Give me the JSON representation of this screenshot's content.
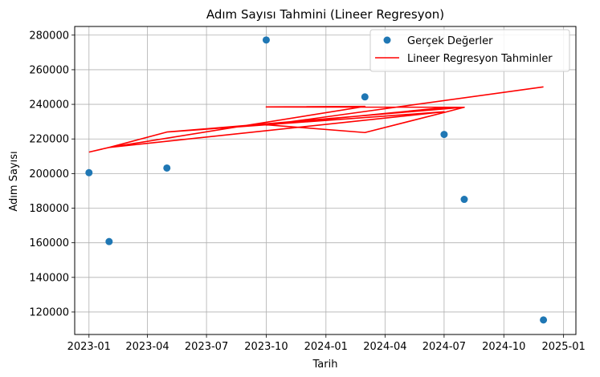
{
  "chart_data": {
    "type": "scatter",
    "title": "Adım Sayısı Tahmini (Lineer Regresyon)",
    "xlabel": "Tarih",
    "ylabel": "Adım Sayısı",
    "x_ticks": [
      "2023-01",
      "2023-04",
      "2023-07",
      "2023-10",
      "2024-01",
      "2024-04",
      "2024-07",
      "2024-10",
      "2025-01"
    ],
    "y_ticks": [
      120000,
      140000,
      160000,
      180000,
      200000,
      220000,
      240000,
      260000,
      280000
    ],
    "xlim": [
      "2022-12-10",
      "2025-01-20"
    ],
    "ylim": [
      107000,
      285000
    ],
    "grid": true,
    "legend_position": "top-right",
    "series": [
      {
        "name": "Gerçek Değerler",
        "kind": "points",
        "color": "#1f77b4",
        "x": [
          "2023-01-01",
          "2023-02-01",
          "2023-05-01",
          "2023-10-01",
          "2024-03-01",
          "2024-07-01",
          "2024-08-01",
          "2024-12-01"
        ],
        "y": [
          200500,
          160700,
          203200,
          277200,
          244300,
          222600,
          185100,
          115400
        ]
      },
      {
        "name": "Lineer Regresyon Tahminler",
        "kind": "line",
        "color": "#ff0000",
        "x": [
          "2023-01-01",
          "2023-02-01",
          "2024-07-01",
          "2023-05-01",
          "2024-08-01",
          "2023-10-01",
          "2024-03-01",
          "2023-02-01",
          "2023-05-01",
          "2023-10-01",
          "2024-03-01",
          "2024-07-01",
          "2024-08-01",
          "2024-07-01",
          "2023-10-01",
          "2024-12-01"
        ],
        "y": [
          212400,
          215100,
          235700,
          224000,
          238300,
          238500,
          238800,
          215100,
          224000,
          228200,
          223700,
          235300,
          238300,
          238100,
          228000,
          250100
        ]
      }
    ]
  }
}
